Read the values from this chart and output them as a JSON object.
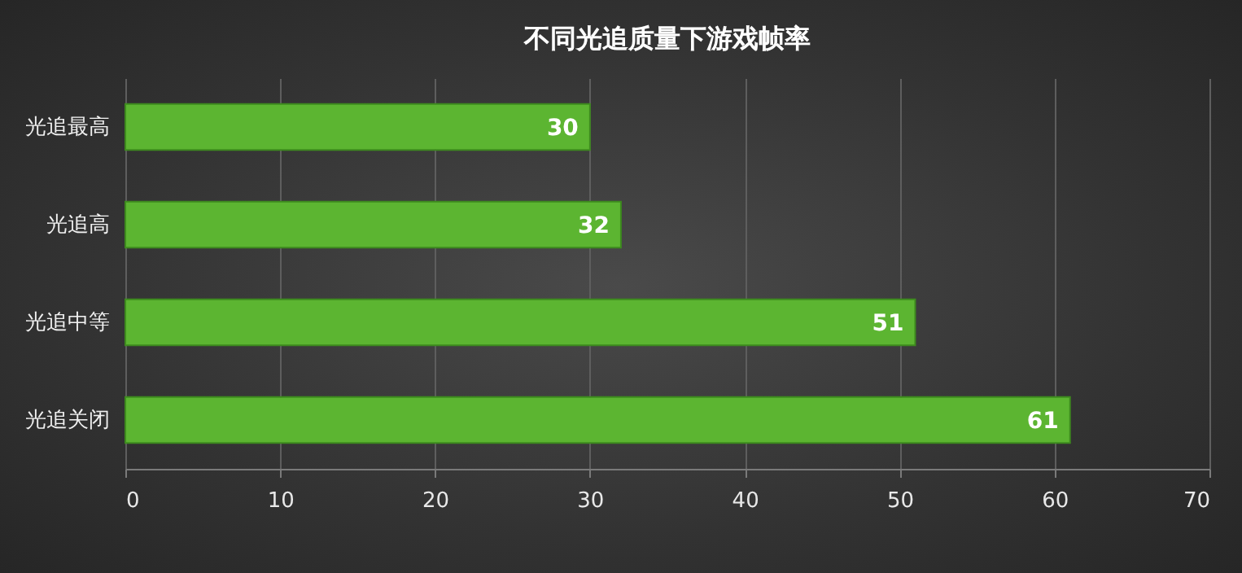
{
  "chart_data": {
    "type": "bar",
    "title": "不同光追质量下游戏帧率",
    "orientation": "horizontal",
    "categories": [
      "光追最高",
      "光追高",
      "光追中等",
      "光追关闭"
    ],
    "values": [
      30,
      32,
      51,
      61
    ],
    "color": "#5cb531",
    "xlim": [
      0,
      70
    ],
    "xticks": [
      0,
      10,
      20,
      30,
      40,
      50,
      60,
      70
    ],
    "grid": "x",
    "data_labels": true
  }
}
